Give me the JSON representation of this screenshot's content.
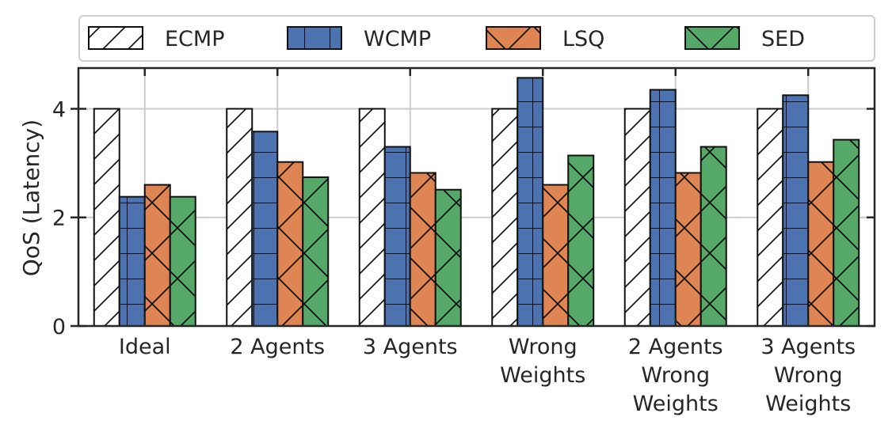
{
  "chart_data": {
    "type": "bar",
    "title": "",
    "xlabel": "",
    "ylabel": "QoS (Latency)",
    "ylim": [
      0,
      4.75
    ],
    "yticks": [
      0,
      2,
      4
    ],
    "grid": true,
    "legend_position": "top",
    "categories": [
      [
        "Ideal"
      ],
      [
        "2 Agents"
      ],
      [
        "3 Agents"
      ],
      [
        "Wrong",
        "Weights"
      ],
      [
        "2 Agents",
        "Wrong",
        "Weights"
      ],
      [
        "3 Agents",
        "Wrong",
        "Weights"
      ]
    ],
    "series": [
      {
        "name": "ECMP",
        "color": "#ffffff",
        "pattern": "diagonal",
        "values": [
          4.0,
          4.0,
          4.0,
          4.0,
          4.0,
          4.0
        ]
      },
      {
        "name": "WCMP",
        "color": "#4c72b0",
        "pattern": "grid",
        "values": [
          2.38,
          3.58,
          3.3,
          4.57,
          4.35,
          4.25
        ]
      },
      {
        "name": "LSQ",
        "color": "#dd8452",
        "pattern": "cross",
        "values": [
          2.6,
          3.02,
          2.82,
          2.6,
          2.82,
          3.02
        ]
      },
      {
        "name": "SED",
        "color": "#55a868",
        "pattern": "cross",
        "values": [
          2.38,
          2.74,
          2.51,
          3.14,
          3.3,
          3.43
        ]
      }
    ]
  }
}
